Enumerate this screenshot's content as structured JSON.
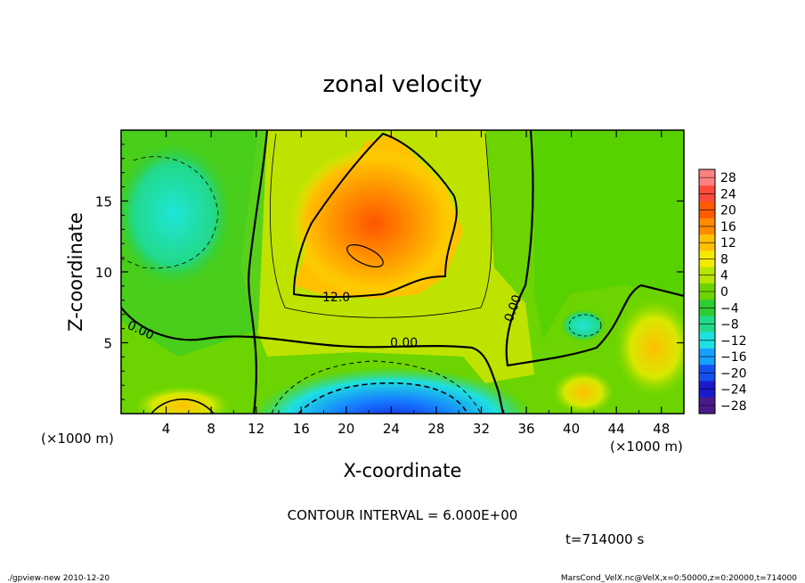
{
  "chart_data": {
    "type": "heatmap",
    "title": "zonal velocity",
    "xlabel": "X-coordinate",
    "ylabel": "Z-coordinate",
    "x_unit_label": "(×1000 m)",
    "y_unit_label": "(×1000 m)",
    "xlim": [
      0,
      50
    ],
    "ylim": [
      0,
      20
    ],
    "x_ticks": [
      4,
      8,
      12,
      16,
      20,
      24,
      28,
      32,
      36,
      40,
      44,
      48
    ],
    "y_ticks": [
      5,
      10,
      15
    ],
    "colorbar_levels": [
      28,
      24,
      20,
      16,
      12,
      8,
      4,
      0,
      -4,
      -8,
      -12,
      -16,
      -20,
      -24,
      -28
    ],
    "colorbar_colors": [
      "#ff8080",
      "#ff4a3a",
      "#ff5a00",
      "#ff8a00",
      "#ffc000",
      "#f4ea00",
      "#b8e600",
      "#6cd400",
      "#2ecc33",
      "#22d98a",
      "#1ee0e0",
      "#16a0ff",
      "#1450f0",
      "#1a1acc",
      "#4a1a8a"
    ],
    "contour_interval_text": "CONTOUR INTERVAL = 6.000E+00",
    "contour_labels": [
      "12.0",
      "0.00",
      "0.00",
      "0.00"
    ],
    "time_text": "t=714000 s",
    "field_features": [
      {
        "kind": "max",
        "x": 22,
        "z": 12,
        "value": 18
      },
      {
        "kind": "min",
        "x": 24,
        "z": 0.5,
        "value": -20
      },
      {
        "kind": "min",
        "x": 5,
        "z": 14,
        "value": -8
      },
      {
        "kind": "max",
        "x": 6,
        "z": 0.5,
        "value": 12
      },
      {
        "kind": "max",
        "x": 47,
        "z": 5,
        "value": 8
      },
      {
        "kind": "max",
        "x": 42,
        "z": 1.5,
        "value": 8
      },
      {
        "kind": "min",
        "x": 41,
        "z": 7,
        "value": -6
      }
    ]
  },
  "footer": {
    "left": "./gpview-new   2010-12-20",
    "right": "MarsCond_VelX.nc@VelX,x=0:50000,z=0:20000,t=714000"
  }
}
